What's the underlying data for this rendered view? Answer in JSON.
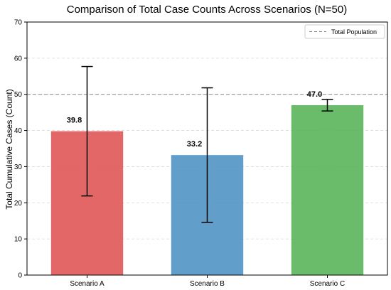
{
  "chart_data": {
    "type": "bar",
    "title": "Comparison of Total Case Counts Across Scenarios (N=50)",
    "xlabel": "",
    "ylabel": "Total Cumulative Cases (Count)",
    "categories": [
      "Scenario A",
      "Scenario B",
      "Scenario C"
    ],
    "values": [
      39.8,
      33.2,
      47.0
    ],
    "value_labels": [
      "39.8",
      "33.2",
      "47.0"
    ],
    "error_low": [
      21.9,
      14.6,
      45.4
    ],
    "error_high": [
      57.7,
      51.8,
      48.6
    ],
    "colors": [
      "#e05252",
      "#4b91c3",
      "#55b355"
    ],
    "ylim": [
      0,
      70
    ],
    "yticks": [
      0,
      10,
      20,
      30,
      40,
      50,
      60,
      70
    ],
    "grid": "y-dashed",
    "reference_line": {
      "value": 50,
      "label": "Total Population",
      "color": "#888888"
    },
    "legend": {
      "position": "top-right",
      "entries": [
        "Total Population"
      ]
    }
  }
}
